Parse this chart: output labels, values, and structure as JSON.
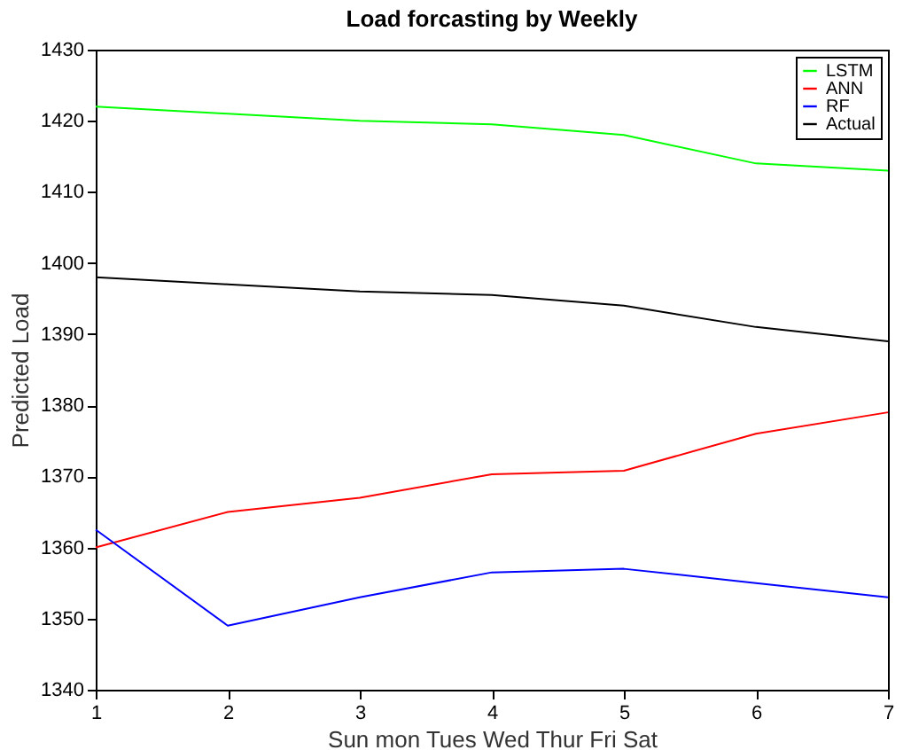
{
  "chart_data": {
    "type": "line",
    "title": "Load forcasting by Weekly",
    "xlabel": "Sun mon Tues  Wed Thur Fri Sat",
    "ylabel": "Predicted Load",
    "x": [
      1,
      2,
      3,
      4,
      5,
      6,
      7
    ],
    "series": [
      {
        "name": "LSTM",
        "color": "#00ff00",
        "values": [
          1422,
          1421,
          1420,
          1419.5,
          1418,
          1414,
          1413
        ]
      },
      {
        "name": "ANN",
        "color": "#ff0000",
        "values": [
          1360,
          1365,
          1367,
          1370.3,
          1370.8,
          1376,
          1379
        ]
      },
      {
        "name": "RF",
        "color": "#0000ff",
        "values": [
          1362.5,
          1349,
          1353,
          1356.5,
          1357,
          1355,
          1353
        ]
      },
      {
        "name": "Actual",
        "color": "#000000",
        "values": [
          1398,
          1397,
          1396,
          1395.5,
          1394,
          1391,
          1389
        ]
      }
    ],
    "xlim": [
      1,
      7
    ],
    "xticks": [
      1,
      2,
      3,
      4,
      5,
      6,
      7
    ],
    "ylim": [
      1340,
      1430
    ],
    "yticks": [
      1340,
      1350,
      1360,
      1370,
      1380,
      1390,
      1400,
      1410,
      1420,
      1430
    ],
    "grid": false,
    "legend": "top right",
    "marker": "none",
    "line_style": "solid"
  }
}
